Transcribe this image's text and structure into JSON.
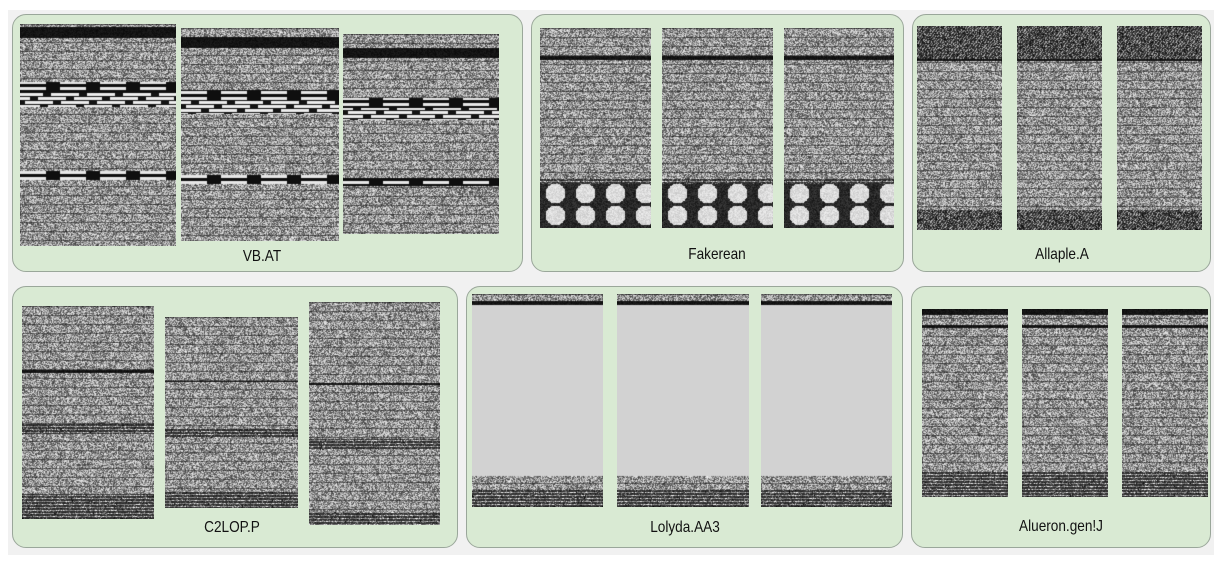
{
  "families": [
    {
      "name": "VB.AT",
      "samples": 3
    },
    {
      "name": "Fakerean",
      "samples": 3
    },
    {
      "name": "Allaple.A",
      "samples": 3
    },
    {
      "name": "C2LOP.P",
      "samples": 3
    },
    {
      "name": "Lolyda.AA3",
      "samples": 3
    },
    {
      "name": "Alueron.gen!J",
      "samples": 3
    }
  ],
  "colors": {
    "panel_fill": "#d9ead3",
    "panel_border": "#9aa79a"
  }
}
